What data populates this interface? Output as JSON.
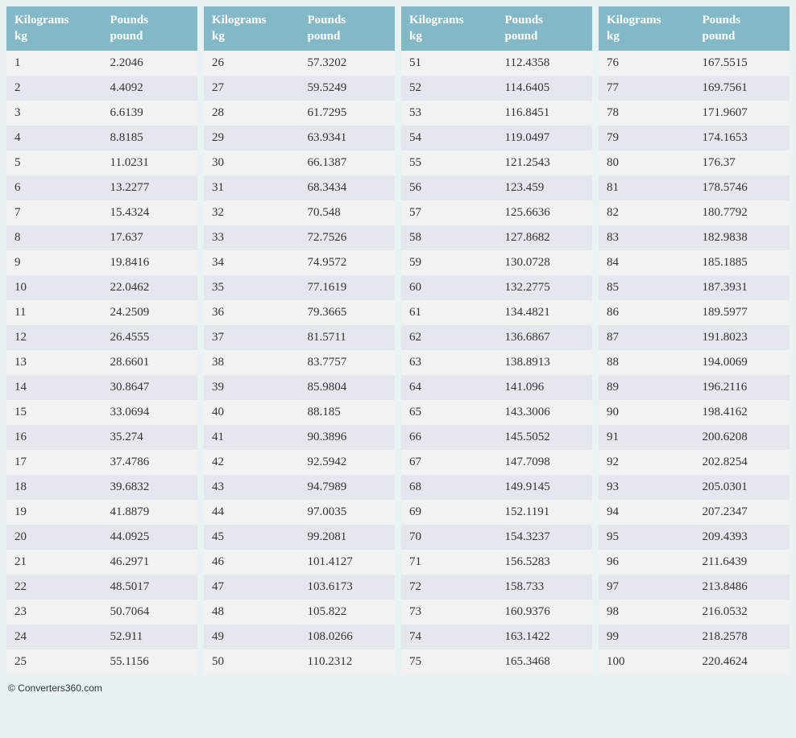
{
  "page": {
    "background_color": "#e9f3f4",
    "table_count": 4,
    "rows_per_table": 25
  },
  "headers": {
    "col1_line1": "Kilograms",
    "col1_line2": "kg",
    "col2_line1": "Pounds",
    "col2_line2": "pound"
  },
  "style": {
    "header_bg": "#83b8c6",
    "header_text_color": "#ffffff",
    "row_odd_bg": "#f2f2f2",
    "row_even_bg": "#e4e8ee",
    "cell_text_color": "#333333",
    "font_family": "Georgia, serif",
    "header_font_size_pt": 11,
    "cell_font_size_pt": 11
  },
  "tables": [
    {
      "rows": [
        {
          "kg": "1",
          "lb": "2.2046"
        },
        {
          "kg": "2",
          "lb": "4.4092"
        },
        {
          "kg": "3",
          "lb": "6.6139"
        },
        {
          "kg": "4",
          "lb": "8.8185"
        },
        {
          "kg": "5",
          "lb": "11.0231"
        },
        {
          "kg": "6",
          "lb": "13.2277"
        },
        {
          "kg": "7",
          "lb": "15.4324"
        },
        {
          "kg": "8",
          "lb": "17.637"
        },
        {
          "kg": "9",
          "lb": "19.8416"
        },
        {
          "kg": "10",
          "lb": "22.0462"
        },
        {
          "kg": "11",
          "lb": "24.2509"
        },
        {
          "kg": "12",
          "lb": "26.4555"
        },
        {
          "kg": "13",
          "lb": "28.6601"
        },
        {
          "kg": "14",
          "lb": "30.8647"
        },
        {
          "kg": "15",
          "lb": "33.0694"
        },
        {
          "kg": "16",
          "lb": "35.274"
        },
        {
          "kg": "17",
          "lb": "37.4786"
        },
        {
          "kg": "18",
          "lb": "39.6832"
        },
        {
          "kg": "19",
          "lb": "41.8879"
        },
        {
          "kg": "20",
          "lb": "44.0925"
        },
        {
          "kg": "21",
          "lb": "46.2971"
        },
        {
          "kg": "22",
          "lb": "48.5017"
        },
        {
          "kg": "23",
          "lb": "50.7064"
        },
        {
          "kg": "24",
          "lb": "52.911"
        },
        {
          "kg": "25",
          "lb": "55.1156"
        }
      ]
    },
    {
      "rows": [
        {
          "kg": "26",
          "lb": "57.3202"
        },
        {
          "kg": "27",
          "lb": "59.5249"
        },
        {
          "kg": "28",
          "lb": "61.7295"
        },
        {
          "kg": "29",
          "lb": "63.9341"
        },
        {
          "kg": "30",
          "lb": "66.1387"
        },
        {
          "kg": "31",
          "lb": "68.3434"
        },
        {
          "kg": "32",
          "lb": "70.548"
        },
        {
          "kg": "33",
          "lb": "72.7526"
        },
        {
          "kg": "34",
          "lb": "74.9572"
        },
        {
          "kg": "35",
          "lb": "77.1619"
        },
        {
          "kg": "36",
          "lb": "79.3665"
        },
        {
          "kg": "37",
          "lb": "81.5711"
        },
        {
          "kg": "38",
          "lb": "83.7757"
        },
        {
          "kg": "39",
          "lb": "85.9804"
        },
        {
          "kg": "40",
          "lb": "88.185"
        },
        {
          "kg": "41",
          "lb": "90.3896"
        },
        {
          "kg": "42",
          "lb": "92.5942"
        },
        {
          "kg": "43",
          "lb": "94.7989"
        },
        {
          "kg": "44",
          "lb": "97.0035"
        },
        {
          "kg": "45",
          "lb": "99.2081"
        },
        {
          "kg": "46",
          "lb": "101.4127"
        },
        {
          "kg": "47",
          "lb": "103.6173"
        },
        {
          "kg": "48",
          "lb": "105.822"
        },
        {
          "kg": "49",
          "lb": "108.0266"
        },
        {
          "kg": "50",
          "lb": "110.2312"
        }
      ]
    },
    {
      "rows": [
        {
          "kg": "51",
          "lb": "112.4358"
        },
        {
          "kg": "52",
          "lb": "114.6405"
        },
        {
          "kg": "53",
          "lb": "116.8451"
        },
        {
          "kg": "54",
          "lb": "119.0497"
        },
        {
          "kg": "55",
          "lb": "121.2543"
        },
        {
          "kg": "56",
          "lb": "123.459"
        },
        {
          "kg": "57",
          "lb": "125.6636"
        },
        {
          "kg": "58",
          "lb": "127.8682"
        },
        {
          "kg": "59",
          "lb": "130.0728"
        },
        {
          "kg": "60",
          "lb": "132.2775"
        },
        {
          "kg": "61",
          "lb": "134.4821"
        },
        {
          "kg": "62",
          "lb": "136.6867"
        },
        {
          "kg": "63",
          "lb": "138.8913"
        },
        {
          "kg": "64",
          "lb": "141.096"
        },
        {
          "kg": "65",
          "lb": "143.3006"
        },
        {
          "kg": "66",
          "lb": "145.5052"
        },
        {
          "kg": "67",
          "lb": "147.7098"
        },
        {
          "kg": "68",
          "lb": "149.9145"
        },
        {
          "kg": "69",
          "lb": "152.1191"
        },
        {
          "kg": "70",
          "lb": "154.3237"
        },
        {
          "kg": "71",
          "lb": "156.5283"
        },
        {
          "kg": "72",
          "lb": "158.733"
        },
        {
          "kg": "73",
          "lb": "160.9376"
        },
        {
          "kg": "74",
          "lb": "163.1422"
        },
        {
          "kg": "75",
          "lb": "165.3468"
        }
      ]
    },
    {
      "rows": [
        {
          "kg": "76",
          "lb": "167.5515"
        },
        {
          "kg": "77",
          "lb": "169.7561"
        },
        {
          "kg": "78",
          "lb": "171.9607"
        },
        {
          "kg": "79",
          "lb": "174.1653"
        },
        {
          "kg": "80",
          "lb": "176.37"
        },
        {
          "kg": "81",
          "lb": "178.5746"
        },
        {
          "kg": "82",
          "lb": "180.7792"
        },
        {
          "kg": "83",
          "lb": "182.9838"
        },
        {
          "kg": "84",
          "lb": "185.1885"
        },
        {
          "kg": "85",
          "lb": "187.3931"
        },
        {
          "kg": "86",
          "lb": "189.5977"
        },
        {
          "kg": "87",
          "lb": "191.8023"
        },
        {
          "kg": "88",
          "lb": "194.0069"
        },
        {
          "kg": "89",
          "lb": "196.2116"
        },
        {
          "kg": "90",
          "lb": "198.4162"
        },
        {
          "kg": "91",
          "lb": "200.6208"
        },
        {
          "kg": "92",
          "lb": "202.8254"
        },
        {
          "kg": "93",
          "lb": "205.0301"
        },
        {
          "kg": "94",
          "lb": "207.2347"
        },
        {
          "kg": "95",
          "lb": "209.4393"
        },
        {
          "kg": "96",
          "lb": "211.6439"
        },
        {
          "kg": "97",
          "lb": "213.8486"
        },
        {
          "kg": "98",
          "lb": "216.0532"
        },
        {
          "kg": "99",
          "lb": "218.2578"
        },
        {
          "kg": "100",
          "lb": "220.4624"
        }
      ]
    }
  ],
  "footer": {
    "text": "© Converters360.com"
  }
}
